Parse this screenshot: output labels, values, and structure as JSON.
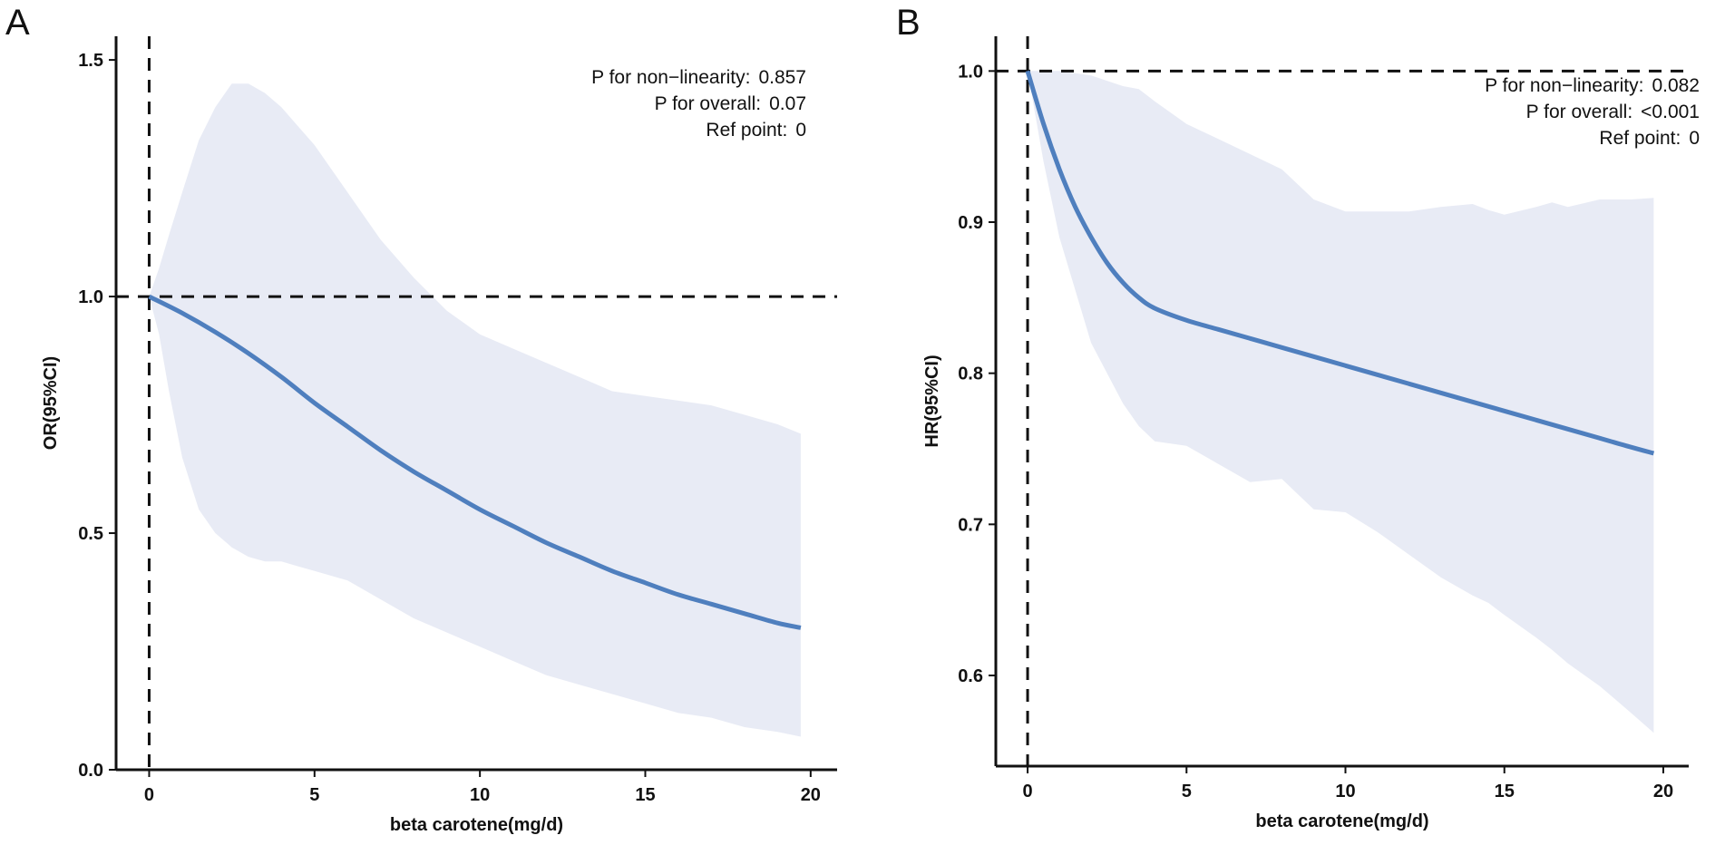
{
  "chart_data": [
    {
      "type": "line",
      "panel": "A",
      "xlabel": "beta carotene(mg/d)",
      "ylabel": "OR(95%CI)",
      "xlim": [
        -1,
        20.8
      ],
      "ylim": [
        0,
        1.55
      ],
      "xticks": [
        0,
        5,
        10,
        15,
        20
      ],
      "yticks": [
        0.0,
        0.5,
        1.0,
        1.5
      ],
      "ytick_labels": [
        "0.0",
        "0.5",
        "1.0",
        "1.5"
      ],
      "ref_vline": 0,
      "ref_hline": 1.0,
      "annotations": [
        {
          "label": "P for non−linearity:",
          "value": "0.857"
        },
        {
          "label": "P for overall:",
          "value": "0.07"
        },
        {
          "label": "Ref point:",
          "value": "0"
        }
      ],
      "series": [
        {
          "name": "OR",
          "color": "#4f7fbe",
          "x": [
            0,
            1,
            2,
            3,
            4,
            5,
            6,
            7,
            8,
            9,
            10,
            11,
            12,
            13,
            14,
            15,
            16,
            17,
            18,
            19,
            19.7
          ],
          "values": [
            1.0,
            0.965,
            0.925,
            0.88,
            0.83,
            0.775,
            0.725,
            0.675,
            0.63,
            0.59,
            0.55,
            0.515,
            0.48,
            0.45,
            0.42,
            0.395,
            0.37,
            0.35,
            0.33,
            0.31,
            0.3
          ]
        }
      ],
      "ci": {
        "color": "#e8ebf5",
        "x": [
          0,
          0.3,
          0.6,
          1,
          1.5,
          2,
          2.5,
          3,
          3.5,
          4,
          4.5,
          5,
          6,
          7,
          8,
          9,
          10,
          11,
          12,
          13,
          14,
          15,
          16,
          17,
          18,
          19,
          19.7
        ],
        "upper": [
          1.0,
          1.06,
          1.13,
          1.22,
          1.33,
          1.4,
          1.45,
          1.45,
          1.43,
          1.4,
          1.36,
          1.32,
          1.22,
          1.12,
          1.04,
          0.97,
          0.92,
          0.89,
          0.86,
          0.83,
          0.8,
          0.79,
          0.78,
          0.77,
          0.75,
          0.73,
          0.71
        ],
        "lower": [
          1.0,
          0.92,
          0.8,
          0.66,
          0.55,
          0.5,
          0.47,
          0.45,
          0.44,
          0.44,
          0.43,
          0.42,
          0.4,
          0.36,
          0.32,
          0.29,
          0.26,
          0.23,
          0.2,
          0.18,
          0.16,
          0.14,
          0.12,
          0.11,
          0.09,
          0.08,
          0.07
        ]
      }
    },
    {
      "type": "line",
      "panel": "B",
      "xlabel": "beta carotene(mg/d)",
      "ylabel": "HR(95%CI)",
      "xlim": [
        -1,
        20.8
      ],
      "ylim": [
        0.54,
        1.023
      ],
      "xticks": [
        0,
        5,
        10,
        15,
        20
      ],
      "yticks": [
        0.6,
        0.7,
        0.8,
        0.9,
        1.0
      ],
      "ytick_labels": [
        "0.6",
        "0.7",
        "0.8",
        "0.9",
        "1.0"
      ],
      "ref_vline": 0,
      "ref_hline": 1.0,
      "annotations": [
        {
          "label": "P for non−linearity:",
          "value": "0.082"
        },
        {
          "label": "P for overall:",
          "value": "<0.001"
        },
        {
          "label": "Ref point:",
          "value": "0"
        }
      ],
      "series": [
        {
          "name": "HR",
          "color": "#4f7fbe",
          "x": [
            0,
            0.5,
            1,
            1.5,
            2,
            2.5,
            3,
            3.5,
            4,
            5,
            6,
            7,
            8,
            9,
            10,
            11,
            12,
            13,
            14,
            15,
            16,
            17,
            18,
            19,
            19.7
          ],
          "values": [
            1.0,
            0.965,
            0.935,
            0.91,
            0.89,
            0.873,
            0.86,
            0.85,
            0.843,
            0.835,
            0.829,
            0.823,
            0.817,
            0.811,
            0.805,
            0.799,
            0.793,
            0.787,
            0.781,
            0.775,
            0.769,
            0.763,
            0.757,
            0.751,
            0.747
          ]
        }
      ],
      "ci": {
        "color": "#e8ebf5",
        "x": [
          0,
          0.5,
          1,
          2,
          3,
          3.5,
          4,
          5,
          6,
          7,
          8,
          8.5,
          9,
          10,
          11,
          12,
          13,
          14,
          14.5,
          15,
          16,
          16.5,
          17,
          18,
          19,
          19.7
        ],
        "upper": [
          1.0,
          1.0,
          1.0,
          0.997,
          0.99,
          0.988,
          0.98,
          0.965,
          0.955,
          0.945,
          0.935,
          0.925,
          0.915,
          0.907,
          0.907,
          0.907,
          0.91,
          0.912,
          0.908,
          0.905,
          0.91,
          0.913,
          0.91,
          0.915,
          0.915,
          0.916
        ],
        "lower": [
          1.0,
          0.94,
          0.89,
          0.82,
          0.78,
          0.765,
          0.755,
          0.752,
          0.74,
          0.728,
          0.73,
          0.72,
          0.71,
          0.708,
          0.695,
          0.68,
          0.665,
          0.653,
          0.648,
          0.64,
          0.625,
          0.617,
          0.608,
          0.593,
          0.575,
          0.562
        ]
      }
    }
  ]
}
